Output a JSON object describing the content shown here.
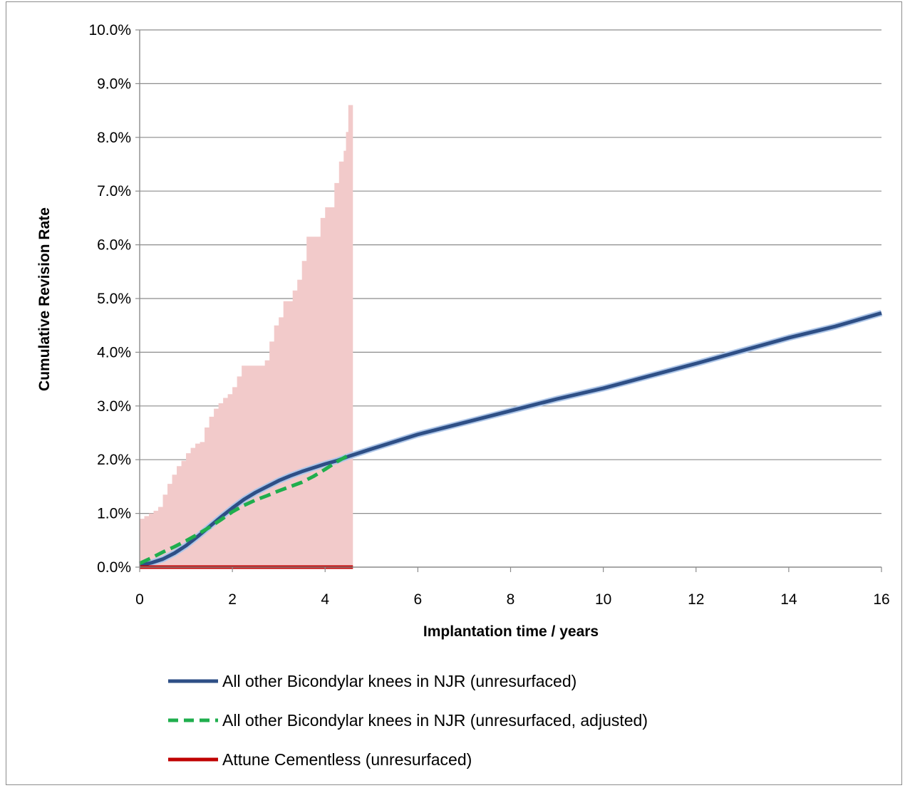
{
  "chart_data": {
    "type": "line",
    "title": "",
    "xlabel": "Implantation time  / years",
    "ylabel": "Cumulative Revision Rate",
    "xlim": [
      0,
      16
    ],
    "ylim": [
      0,
      10
    ],
    "x_ticks": [
      "0",
      "2",
      "4",
      "6",
      "8",
      "10",
      "12",
      "14",
      "16"
    ],
    "y_ticks": [
      "0.0%",
      "1.0%",
      "2.0%",
      "3.0%",
      "4.0%",
      "5.0%",
      "6.0%",
      "7.0%",
      "8.0%",
      "9.0%",
      "10.0%"
    ],
    "grid": "horizontal",
    "legend_position": "bottom",
    "series": [
      {
        "name": "All other Bicondylar knees in NJR (unresurfaced)",
        "color": "#2e4f86",
        "style": "solid",
        "x": [
          0,
          0.25,
          0.5,
          0.75,
          1,
          1.25,
          1.5,
          1.75,
          2,
          2.25,
          2.5,
          2.75,
          3,
          3.25,
          3.5,
          3.75,
          4,
          4.25,
          4.5,
          5,
          6,
          7,
          8,
          9,
          10,
          11,
          12,
          13,
          14,
          15,
          16
        ],
        "y": [
          0.03,
          0.08,
          0.15,
          0.26,
          0.4,
          0.57,
          0.75,
          0.93,
          1.1,
          1.26,
          1.39,
          1.5,
          1.61,
          1.7,
          1.78,
          1.85,
          1.92,
          1.98,
          2.06,
          2.2,
          2.47,
          2.69,
          2.91,
          3.13,
          3.33,
          3.56,
          3.79,
          4.03,
          4.27,
          4.48,
          4.73
        ]
      },
      {
        "name": "All other Bicondylar knees in NJR (unresurfaced, adjusted)",
        "color": "#1fae4d",
        "style": "dashed",
        "x": [
          0,
          0.25,
          0.5,
          0.75,
          1,
          1.25,
          1.5,
          1.75,
          2,
          2.25,
          2.5,
          2.75,
          3,
          3.25,
          3.5,
          3.75,
          4,
          4.25,
          4.5
        ],
        "y": [
          0.07,
          0.17,
          0.28,
          0.38,
          0.49,
          0.61,
          0.74,
          0.88,
          1.03,
          1.15,
          1.25,
          1.33,
          1.42,
          1.5,
          1.58,
          1.69,
          1.82,
          1.96,
          2.08
        ]
      },
      {
        "name": "Attune Cementless (unresurfaced)",
        "color": "#c00000",
        "style": "solid",
        "x": [
          0,
          4.6
        ],
        "y": [
          0,
          0
        ],
        "ci_upper": {
          "x": [
            0,
            0.1,
            0.2,
            0.3,
            0.4,
            0.5,
            0.6,
            0.7,
            0.8,
            0.9,
            1.0,
            1.1,
            1.2,
            1.3,
            1.4,
            1.5,
            1.6,
            1.7,
            1.8,
            1.9,
            2.0,
            2.1,
            2.2,
            2.3,
            2.4,
            2.5,
            2.6,
            2.7,
            2.8,
            2.9,
            3.0,
            3.1,
            3.2,
            3.3,
            3.4,
            3.5,
            3.6,
            3.7,
            3.8,
            3.9,
            4.0,
            4.1,
            4.2,
            4.3,
            4.4,
            4.45,
            4.5,
            4.55,
            4.6
          ],
          "y": [
            0.9,
            0.95,
            1.0,
            1.05,
            1.12,
            1.35,
            1.55,
            1.72,
            1.88,
            1.98,
            2.12,
            2.22,
            2.3,
            2.33,
            2.6,
            2.8,
            2.95,
            3.05,
            3.15,
            3.22,
            3.35,
            3.55,
            3.75,
            3.75,
            3.75,
            3.75,
            3.75,
            3.85,
            4.2,
            4.5,
            4.65,
            4.95,
            4.95,
            5.15,
            5.35,
            5.7,
            6.15,
            6.15,
            6.15,
            6.5,
            6.7,
            6.7,
            7.15,
            7.55,
            7.75,
            8.1,
            8.6,
            8.6,
            8.9
          ]
        },
        "ci_color": "#f2caca"
      }
    ]
  }
}
